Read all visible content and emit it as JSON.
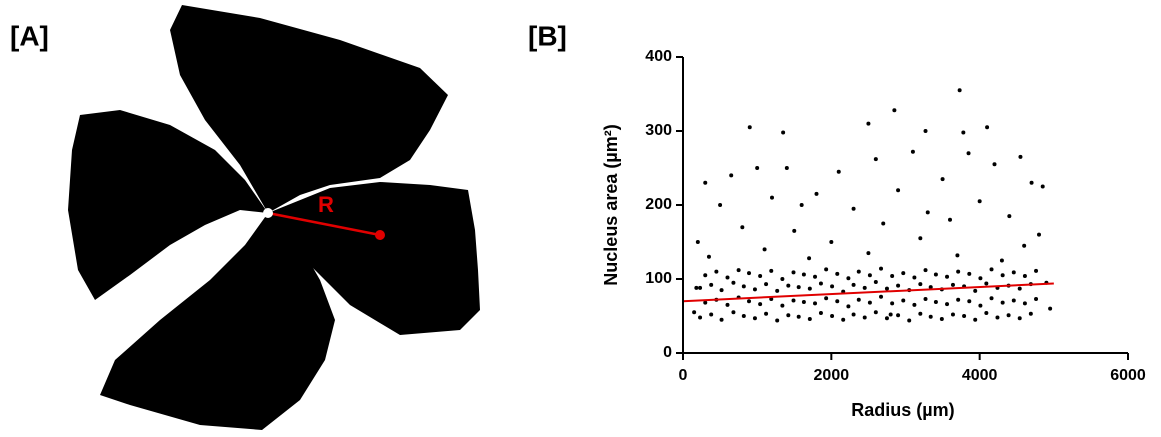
{
  "panel_a": {
    "label": "[A]",
    "annotation": "R"
  },
  "chart_data": {
    "type": "scatter",
    "label": "[B]",
    "x_label": "Radius (µm)",
    "y_label": "Nucleus area (µm²)",
    "color": "#000000",
    "x": [
      230,
      380,
      520,
      680,
      820,
      970,
      1120,
      1270,
      1420,
      1560,
      1710,
      1860,
      2010,
      2160,
      2300,
      2450,
      2600,
      2750,
      2900,
      3050,
      3200,
      3340,
      3490,
      3640,
      3790,
      3940,
      4090,
      4240,
      4390,
      4540,
      4690,
      300,
      450,
      600,
      750,
      890,
      1040,
      1190,
      1340,
      1490,
      1630,
      1780,
      1930,
      2080,
      2230,
      2370,
      2520,
      2670,
      2820,
      2970,
      3120,
      3270,
      3410,
      3560,
      3710,
      3860,
      4010,
      4160,
      4310,
      4460,
      4610,
      4760,
      230,
      380,
      520,
      680,
      820,
      970,
      1120,
      1270,
      1420,
      1560,
      1710,
      1860,
      2010,
      2160,
      2300,
      2450,
      2600,
      2750,
      2900,
      3050,
      3200,
      3340,
      3490,
      3640,
      3790,
      3940,
      4090,
      4240,
      4390,
      4540,
      4690,
      300,
      450,
      600,
      750,
      890,
      1040,
      1190,
      1340,
      1490,
      1630,
      1780,
      1930,
      2080,
      2230,
      2370,
      2520,
      2670,
      2820,
      2970,
      3120,
      3270,
      3410,
      3560,
      3710,
      3860,
      4010,
      4160,
      4310,
      4460,
      4610,
      4760,
      900,
      1350,
      3730,
      2850,
      4100,
      3270,
      3780,
      2500,
      4550,
      4700,
      1000,
      1400,
      650,
      300,
      2100,
      2600,
      3100,
      3850,
      4850,
      1800,
      2900,
      3500,
      4200,
      500,
      1200,
      1600,
      2300,
      3300,
      4000,
      4400,
      800,
      1500,
      2700,
      3600,
      4800,
      200,
      1100,
      2000,
      3200,
      4600,
      350,
      1700,
      2500,
      3700,
      4300,
      4900,
      4950,
      150,
      180,
      2800
    ],
    "values": [
      48,
      52,
      45,
      55,
      50,
      47,
      53,
      44,
      51,
      49,
      46,
      54,
      50,
      45,
      52,
      48,
      55,
      47,
      51,
      44,
      53,
      49,
      46,
      52,
      50,
      45,
      54,
      48,
      51,
      47,
      53,
      68,
      72,
      65,
      75,
      70,
      66,
      73,
      64,
      71,
      69,
      67,
      74,
      70,
      63,
      72,
      68,
      76,
      67,
      71,
      65,
      73,
      69,
      66,
      72,
      70,
      64,
      74,
      68,
      71,
      67,
      73,
      88,
      92,
      85,
      95,
      90,
      86,
      93,
      84,
      91,
      89,
      87,
      94,
      90,
      83,
      92,
      88,
      96,
      87,
      91,
      85,
      93,
      89,
      86,
      92,
      90,
      84,
      94,
      88,
      91,
      87,
      93,
      105,
      110,
      102,
      112,
      108,
      104,
      111,
      100,
      109,
      106,
      103,
      113,
      107,
      101,
      110,
      105,
      114,
      104,
      108,
      102,
      112,
      106,
      103,
      110,
      107,
      101,
      113,
      105,
      109,
      104,
      111,
      305,
      298,
      355,
      328,
      305,
      300,
      298,
      310,
      265,
      230,
      250,
      250,
      240,
      230,
      245,
      262,
      272,
      270,
      225,
      215,
      220,
      235,
      255,
      200,
      210,
      200,
      195,
      190,
      205,
      185,
      170,
      165,
      175,
      180,
      160,
      150,
      140,
      150,
      155,
      145,
      130,
      128,
      135,
      132,
      125,
      95,
      60,
      55,
      88,
      52
    ],
    "fit": {
      "color": "#e00000",
      "x": [
        0,
        5000
      ],
      "values": [
        70,
        94
      ]
    },
    "xlim": [
      0,
      6000
    ],
    "xticks": [
      0,
      2000,
      4000,
      6000
    ],
    "ylim": [
      0,
      400
    ],
    "yticks": [
      0,
      100,
      200,
      300,
      400
    ]
  }
}
